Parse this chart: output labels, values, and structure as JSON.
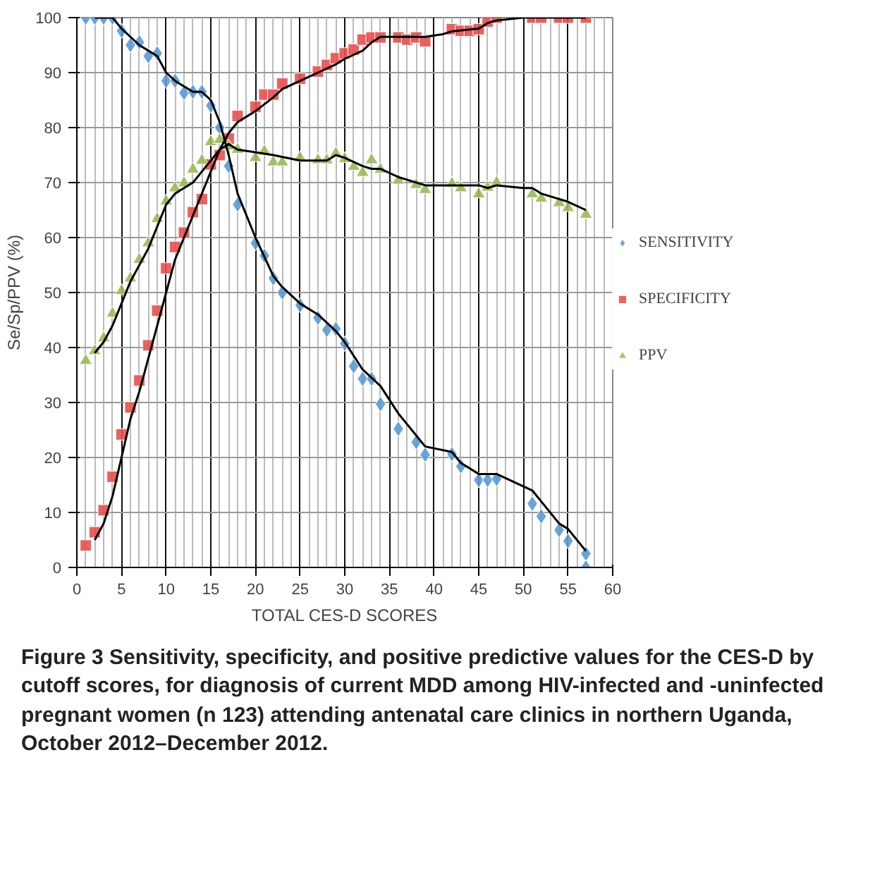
{
  "chart_data": {
    "type": "scatter",
    "xlabel": "TOTAL CES-D SCORES",
    "ylabel": "Se/Sp/PPV (%)",
    "xlim": [
      0,
      60
    ],
    "ylim": [
      0,
      100
    ],
    "xticks": [
      0,
      5,
      10,
      15,
      20,
      25,
      30,
      35,
      40,
      45,
      50,
      55,
      60
    ],
    "yticks": [
      0,
      10,
      20,
      30,
      40,
      50,
      60,
      70,
      80,
      90,
      100
    ],
    "grid": true,
    "legend": "right",
    "series": [
      {
        "name": "SENSITIVITY",
        "color": "#5b9bd5",
        "marker": "diamond",
        "x": [
          1,
          2,
          3,
          4,
          5,
          6,
          7,
          8,
          9,
          10,
          11,
          12,
          13,
          14,
          15,
          16,
          17,
          18,
          20,
          21,
          22,
          23,
          25,
          27,
          28,
          29,
          30,
          31,
          32,
          33,
          34,
          36,
          38,
          39,
          42,
          43,
          45,
          46,
          47,
          51,
          52,
          54,
          55,
          57,
          57
        ],
        "values": [
          100,
          100,
          100,
          100,
          97.6,
          95,
          95.5,
          93,
          93.5,
          88.5,
          88.5,
          86.3,
          86.5,
          86.5,
          84,
          80,
          73,
          66,
          59,
          56.7,
          52.6,
          50,
          47.7,
          45.4,
          43.2,
          43.4,
          40.7,
          36.6,
          34.3,
          34.3,
          29.7,
          25.2,
          22.8,
          20.5,
          20.6,
          18.4,
          15.9,
          15.9,
          16.1,
          11.6,
          9.3,
          6.8,
          4.8,
          2.5,
          0
        ]
      },
      {
        "name": "SPECIFICITY",
        "color": "#e8504e",
        "marker": "square",
        "x": [
          1,
          2,
          3,
          4,
          5,
          6,
          7,
          8,
          9,
          10,
          11,
          12,
          13,
          14,
          15,
          16,
          17,
          18,
          20,
          21,
          22,
          23,
          25,
          27,
          28,
          29,
          30,
          31,
          32,
          33,
          34,
          36,
          37,
          38,
          39,
          42,
          43,
          44,
          45,
          46,
          47,
          51,
          52,
          54,
          55,
          57
        ],
        "values": [
          4,
          6.4,
          10.4,
          16.5,
          24.2,
          29.1,
          34,
          40.4,
          46.7,
          54.4,
          58.3,
          60.9,
          64.6,
          67,
          73.3,
          75,
          78,
          82.1,
          83.8,
          86,
          86,
          88,
          88.9,
          90.2,
          91.4,
          92.6,
          93.5,
          94.2,
          96,
          96.4,
          96.4,
          96.4,
          96,
          96.4,
          95.7,
          97.9,
          97.6,
          97.6,
          97.9,
          99.3,
          100,
          100,
          100,
          100,
          100,
          100
        ]
      },
      {
        "name": "PPV",
        "color": "#9bbb59",
        "marker": "triangle",
        "x": [
          1,
          2,
          3,
          4,
          5,
          6,
          7,
          8,
          9,
          10,
          11,
          12,
          13,
          14,
          15,
          16,
          17,
          18,
          20,
          21,
          22,
          23,
          25,
          27,
          28,
          29,
          30,
          31,
          32,
          33,
          34,
          36,
          38,
          39,
          42,
          43,
          45,
          46,
          47,
          51,
          52,
          54,
          55,
          57
        ],
        "values": [
          37.6,
          39.4,
          41.7,
          46.2,
          50.3,
          52.6,
          56,
          59,
          63.4,
          66.6,
          69,
          69.9,
          72.4,
          74,
          77.4,
          77.8,
          76.6,
          76,
          74.5,
          75.7,
          73.7,
          73.7,
          74.5,
          74.1,
          74.1,
          75.3,
          74.3,
          72.9,
          71.8,
          74.1,
          72.4,
          70.4,
          69.6,
          68.7,
          69.8,
          69,
          67.9,
          69.1,
          70,
          67.9,
          67.1,
          66.3,
          65.4,
          64.2
        ]
      },
      {
        "type": "line",
        "color": "#000000",
        "marker": "none",
        "x": [
          2,
          4,
          5,
          7,
          9,
          10,
          11,
          13,
          14,
          15,
          16,
          17,
          18,
          20,
          22,
          23,
          25,
          27,
          29,
          30,
          32,
          34,
          36,
          38,
          39,
          42,
          43,
          45,
          47,
          51,
          52,
          54,
          55,
          57
        ],
        "values": [
          100,
          100,
          98,
          95,
          93,
          90,
          88.5,
          86.5,
          86.5,
          85,
          81,
          75,
          68,
          60,
          53,
          51,
          48,
          46,
          43,
          41,
          36,
          33,
          28,
          24,
          22,
          21,
          19,
          17,
          17,
          14,
          12,
          8,
          7,
          3
        ]
      },
      {
        "type": "line",
        "color": "#000000",
        "marker": "none",
        "x": [
          2,
          3,
          4,
          5,
          6,
          7,
          8,
          9,
          10,
          11,
          12,
          13,
          14,
          15,
          16,
          17,
          18,
          20,
          22,
          23,
          25,
          27,
          29,
          30,
          32,
          33,
          34,
          36,
          39,
          41,
          42,
          45,
          46,
          47,
          50,
          57
        ],
        "values": [
          5,
          8,
          13,
          20,
          27,
          32,
          38,
          44,
          50,
          56,
          60,
          64,
          68,
          72,
          76,
          79,
          81,
          83,
          85.5,
          87,
          88.5,
          90,
          91.5,
          92.5,
          94,
          95.5,
          96.5,
          96.5,
          96.5,
          97,
          97.5,
          98,
          99,
          99.5,
          100,
          100
        ]
      },
      {
        "type": "line",
        "color": "#000000",
        "marker": "none",
        "x": [
          2,
          3,
          4,
          5,
          6,
          7,
          8,
          9,
          10,
          11,
          13,
          14,
          15,
          16,
          17,
          18,
          20,
          22,
          25,
          28,
          29,
          30,
          32,
          33,
          34,
          36,
          39,
          42,
          45,
          46,
          47,
          50,
          51,
          52,
          54,
          55,
          57
        ],
        "values": [
          39,
          41,
          44,
          48,
          52,
          55,
          58,
          62,
          66,
          68,
          70,
          72,
          74,
          76,
          77,
          76,
          75.5,
          75,
          74,
          74,
          75,
          74.5,
          73,
          72.5,
          72.5,
          71,
          69.5,
          69.5,
          69.5,
          69,
          69.5,
          69,
          69,
          68,
          67,
          66.5,
          65
        ]
      }
    ],
    "annotations": [
      "Figure 3 Sensitivity, specificity, and positive predictive values for the CES-D by cutoff scores, for diagnosis of current MDD among HIV-infected and -uninfected pregnant women (n 123) attending antenatal care clinics in northern Uganda, October 2012–December 2012."
    ]
  }
}
